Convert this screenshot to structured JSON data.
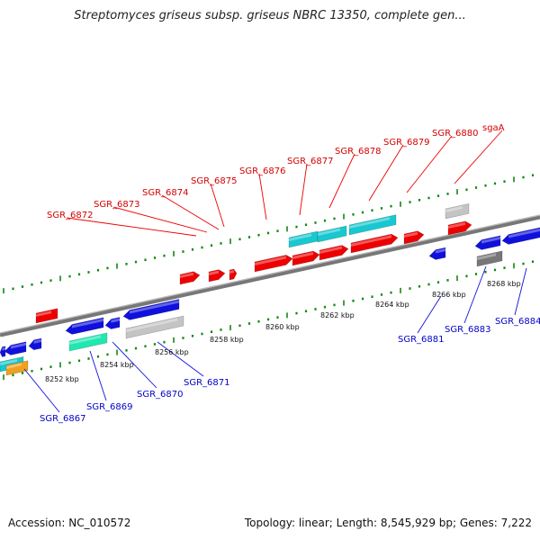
{
  "title": "Streptomyces griseus subsp. griseus NBRC 13350, complete gen...",
  "accession": "Accession: NC_010572",
  "summary": "Topology: linear; Length: 8,545,929 bp; Genes: 7,222",
  "colors": {
    "forward_gene": "#ee0000",
    "reverse_gene": "#1010dd",
    "cyan": "#18c8d0",
    "teal": "#20e8b0",
    "gray": "#c4c4c4",
    "darkgray": "#777777",
    "orange": "#f0a020",
    "backbone": "#888888",
    "ruler_ticks": "#118811"
  },
  "ruler_labels": [
    "8252 kbp",
    "8254 kbp",
    "8256 kbp",
    "8258 kbp",
    "8260 kbp",
    "8262 kbp",
    "8264 kbp",
    "8266 kbp",
    "8268 kbp"
  ],
  "top_labels": [
    "SGR_6872",
    "SGR_6873",
    "SGR_6874",
    "SGR_6875",
    "SGR_6876",
    "SGR_6877",
    "SGR_6878",
    "SGR_6879",
    "SGR_6880",
    "sgaA"
  ],
  "bottom_labels": [
    "SGR_6867",
    "SGR_6869",
    "SGR_6870",
    "SGR_6871",
    "SGR_6881",
    "SGR_6883",
    "SGR_6884"
  ]
}
